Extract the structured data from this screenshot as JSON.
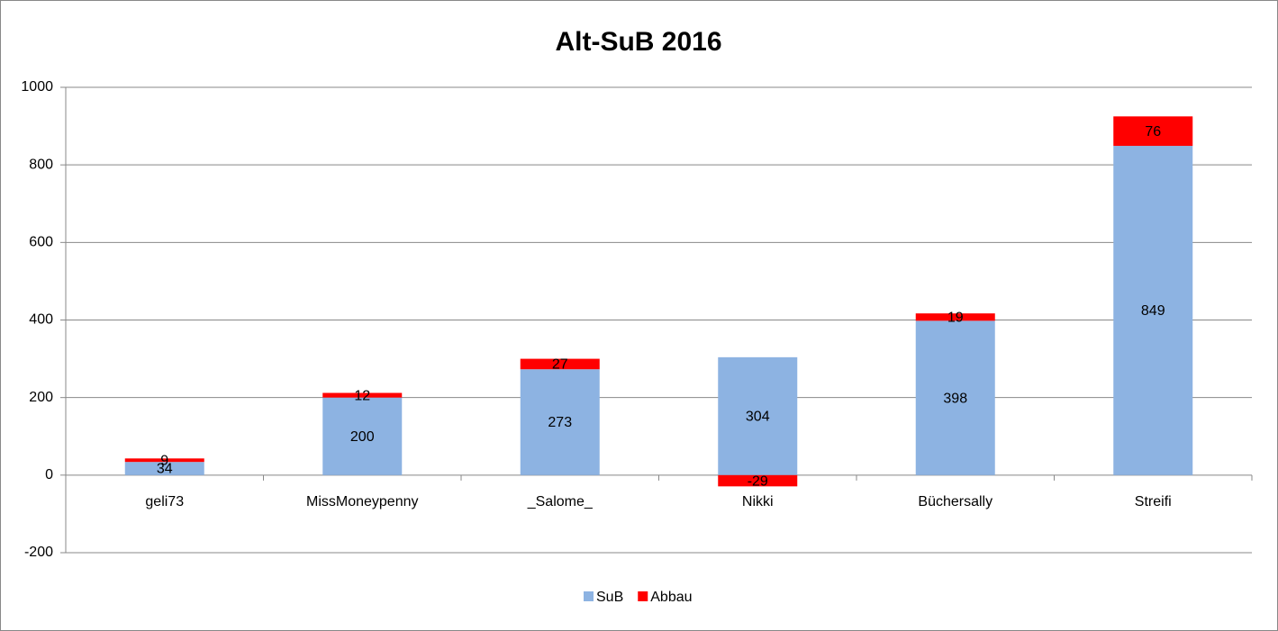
{
  "chart_data": {
    "type": "bar",
    "stacked": true,
    "title": "Alt-SuB 2016",
    "categories": [
      "geli73",
      "MissMoneypenny",
      "_Salome_",
      "Nikki",
      "Büchersally",
      "Streifi"
    ],
    "series": [
      {
        "name": "SuB",
        "color": "#8db3e2",
        "values": [
          34,
          200,
          273,
          304,
          398,
          849
        ]
      },
      {
        "name": "Abbau",
        "color": "#ff0000",
        "values": [
          9,
          12,
          27,
          -29,
          19,
          76
        ]
      }
    ],
    "ylim": [
      -200,
      1000
    ],
    "yticks": [
      -200,
      0,
      200,
      400,
      600,
      800,
      1000
    ],
    "grid": true,
    "legend": "bottom"
  }
}
